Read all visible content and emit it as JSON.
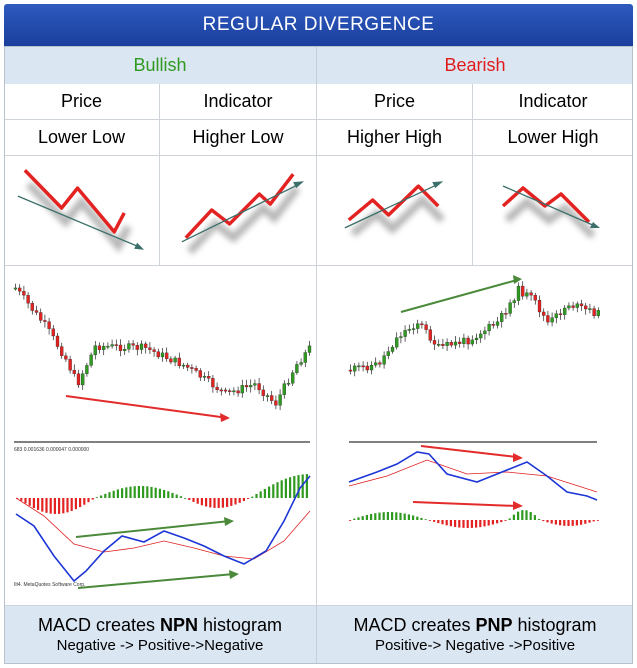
{
  "title": "REGULAR DIVERGENCE",
  "left": {
    "heading": "Bullish",
    "col1_header": "Price",
    "col2_header": "Indicator",
    "col1_value": "Lower Low",
    "col2_value": "Higher Low",
    "footer_line1_prefix": "MACD creates ",
    "footer_line1_bold": "NPN",
    "footer_line1_suffix": " histogram",
    "footer_line2": "Negative -> Positive->Negative",
    "chart_info": "683 0.001636 0.000047 0.000000",
    "chart_watermark": "Ilt4. MetaQuotes Software Corp."
  },
  "right": {
    "heading": "Bearish",
    "col1_header": "Price",
    "col2_header": "Indicator",
    "col1_value": "Higher High",
    "col2_value": "Lower High",
    "footer_line1_prefix": "MACD creates ",
    "footer_line1_bold": "PNP",
    "footer_line1_suffix": " histogram",
    "footer_line2": "Positive-> Negative ->Positive"
  },
  "colors": {
    "title_bg": "#2448a8",
    "bullish": "#2e9a1f",
    "bearish": "#e01b1b",
    "header_bg": "#dbe6f3",
    "divergence_red": "#e32b2b",
    "divergence_green": "#4a8a3a",
    "macd_blue": "#1d36d6",
    "signal_red": "#e02020"
  }
}
